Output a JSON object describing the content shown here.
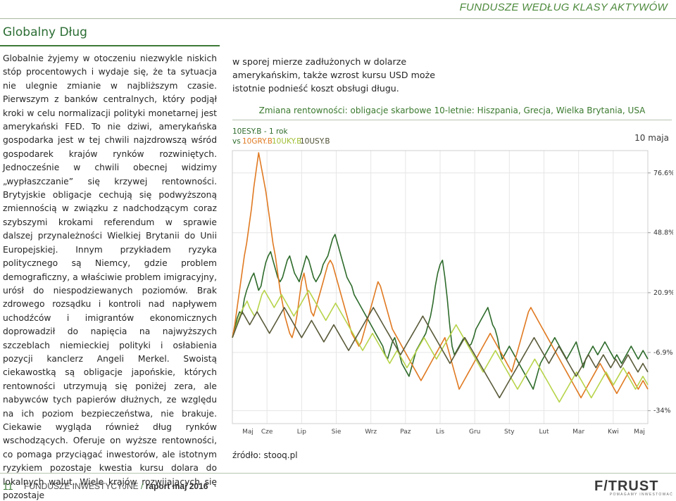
{
  "header": {
    "title": "FUNDUSZE WEDŁUG KLASY AKTYWÓW"
  },
  "section": {
    "title": "Globalny Dług"
  },
  "article": {
    "left_column": "Globalnie żyjemy w otoczeniu niezwykle niskich stóp procentowych i wydaje się, że ta sytuacja nie ulegnie zmianie w najbliższym czasie. Pierwszym z banków centralnych, który podjął kroki w celu normalizacji polityki monetarnej jest amerykański FED. To nie dziwi, amerykańska gospodarka jest w tej chwili najzdrowszą wśród gospodarek krajów rynków rozwiniętych. Jednocześnie w chwili obecnej widzimy „wypłaszczanie” się krzywej rentowności. Brytyjskie obligacje cechują się podwyższoną zmiennością w związku z nadchodzącym coraz szybszymi krokami referendum w sprawie dalszej przynależności Wielkiej Brytanii do Unii Europejskiej. Innym przykładem ryzyka politycznego są Niemcy, gdzie problem demograficzny, a właściwie problem imigracyjny, urósł do niespodziewanych poziomów. Brak zdrowego rozsądku i kontroli nad napływem uchodźców i imigrantów ekonomicznych doprowadził do napięcia na najwyższych szczeblach niemieckiej polityki i osłabienia pozycji kanclerz Angeli Merkel. Swoistą ciekawostką są obligacje japońskie, których rentowności utrzymują się poniżej zera, ale nabywców tych papierów dłużnych, ze względu na ich poziom bezpieczeństwa, nie brakuje. Ciekawie wygląda również dług rynków wschodzących. Oferuje on wyższe rentowności, co pomaga przyciągać inwestorów, ale istotnym ryzykiem pozostaje kwestia kursu dolara do lokalnych walut. Wiele krajów rozwijających się pozostaje",
    "right_column": "w sporej mierze zadłużonych w dolarze amerykańskim, także wzrost kursu USD może istotnie podnieść koszt obsługi długu."
  },
  "chart_title": "Zmiana rentowności: obligacje skarbowe 10-letnie: Hiszpania, Grecja, Wielka Brytania, USA",
  "chart_data": {
    "type": "line",
    "legend": {
      "line1": "10ESY.B - 1 rok",
      "vs": "vs",
      "items": [
        "10GRY.B",
        "10UKY.B",
        "10USY.B"
      ]
    },
    "x_ticks": [
      "Maj",
      "Cze",
      "Lip",
      "Sie",
      "Wrz",
      "Paz",
      "Lis",
      "Gru",
      "Sty",
      "Lut",
      "Mar",
      "Kwi",
      "Maj"
    ],
    "y_ticks": [
      "76.6%",
      "48.8%",
      "20.9%",
      "-6.9%",
      "-34%"
    ],
    "y_tick_values": [
      76.6,
      48.8,
      20.9,
      -6.9,
      -34
    ],
    "ylim": [
      -40,
      87
    ],
    "date_label": "10 maja",
    "series": [
      {
        "name": "10ESY.B",
        "color": "#2e6b2b",
        "values": [
          0,
          4,
          9,
          12,
          11,
          18,
          22,
          25,
          28,
          30,
          26,
          22,
          24,
          30,
          35,
          38,
          40,
          36,
          32,
          28,
          26,
          28,
          32,
          36,
          38,
          34,
          30,
          28,
          26,
          30,
          34,
          38,
          36,
          32,
          28,
          26,
          28,
          30,
          34,
          36,
          38,
          42,
          46,
          48,
          44,
          40,
          36,
          32,
          28,
          26,
          24,
          20,
          18,
          16,
          14,
          12,
          10,
          8,
          6,
          4,
          2,
          0,
          -2,
          -4,
          -8,
          -10,
          -6,
          -2,
          0,
          -4,
          -8,
          -12,
          -14,
          -16,
          -18,
          -14,
          -10,
          -6,
          -4,
          -2,
          0,
          2,
          6,
          10,
          16,
          24,
          30,
          34,
          36,
          28,
          18,
          6,
          -4,
          -8,
          -6,
          -4,
          -2,
          0,
          -2,
          -4,
          -3,
          0,
          4,
          6,
          8,
          10,
          12,
          14,
          10,
          6,
          4,
          0,
          -6,
          -10,
          -8,
          -6,
          -4,
          -6,
          -8,
          -10,
          -12,
          -14,
          -16,
          -18,
          -20,
          -22,
          -24,
          -20,
          -16,
          -12,
          -10,
          -8,
          -6,
          -4,
          -2,
          0,
          -2,
          -4,
          -6,
          -8,
          -10,
          -8,
          -6,
          -4,
          -2,
          -6,
          -10,
          -14,
          -10,
          -8,
          -6,
          -4,
          -6,
          -8,
          -6,
          -4,
          -2,
          -4,
          -6,
          -8,
          -10,
          -8,
          -10,
          -12,
          -10,
          -8,
          -6,
          -4,
          -6,
          -8,
          -10,
          -8,
          -6,
          -8,
          -10
        ]
      },
      {
        "name": "10GRY.B",
        "color": "#e07a22",
        "values": [
          0,
          6,
          14,
          22,
          30,
          38,
          44,
          52,
          60,
          70,
          78,
          86,
          80,
          74,
          68,
          60,
          52,
          44,
          38,
          30,
          22,
          16,
          10,
          6,
          2,
          0,
          4,
          10,
          18,
          26,
          30,
          24,
          18,
          12,
          10,
          14,
          18,
          22,
          26,
          30,
          34,
          36,
          34,
          30,
          26,
          22,
          18,
          14,
          10,
          6,
          2,
          0,
          -2,
          -4,
          -2,
          2,
          6,
          10,
          14,
          18,
          22,
          26,
          24,
          20,
          16,
          12,
          8,
          4,
          2,
          0,
          -2,
          -4,
          -6,
          -8,
          -10,
          -12,
          -14,
          -16,
          -18,
          -20,
          -18,
          -16,
          -14,
          -12,
          -10,
          -8,
          -6,
          -4,
          -2,
          0,
          -4,
          -8,
          -12,
          -16,
          -20,
          -24,
          -22,
          -20,
          -18,
          -16,
          -14,
          -12,
          -10,
          -8,
          -6,
          -4,
          -2,
          0,
          2,
          0,
          -2,
          -4,
          -6,
          -8,
          -10,
          -12,
          -14,
          -16,
          -12,
          -8,
          -4,
          0,
          4,
          8,
          12,
          14,
          12,
          10,
          8,
          6,
          4,
          2,
          0,
          -2,
          -4,
          -6,
          -8,
          -10,
          -12,
          -14,
          -16,
          -18,
          -20,
          -22,
          -24,
          -26,
          -28,
          -26,
          -24,
          -22,
          -20,
          -18,
          -16,
          -14,
          -12,
          -14,
          -16,
          -18,
          -20,
          -22,
          -24,
          -26,
          -24,
          -22,
          -20,
          -18,
          -16,
          -18,
          -20,
          -22,
          -24,
          -22,
          -20,
          -22,
          -24
        ]
      },
      {
        "name": "10UKY.B",
        "color": "#b7d44a",
        "values": [
          0,
          3,
          7,
          10,
          13,
          15,
          17,
          14,
          12,
          10,
          12,
          16,
          20,
          22,
          20,
          18,
          16,
          14,
          16,
          18,
          20,
          18,
          16,
          14,
          12,
          10,
          12,
          14,
          16,
          18,
          20,
          22,
          20,
          18,
          16,
          14,
          12,
          10,
          8,
          10,
          12,
          14,
          16,
          14,
          12,
          10,
          8,
          6,
          4,
          2,
          0,
          -2,
          -4,
          -6,
          -4,
          -2,
          0,
          2,
          0,
          -2,
          -4,
          -6,
          -8,
          -10,
          -12,
          -10,
          -8,
          -6,
          -8,
          -10,
          -12,
          -14,
          -12,
          -10,
          -8,
          -6,
          -4,
          -2,
          0,
          -2,
          -4,
          -6,
          -8,
          -10,
          -8,
          -6,
          -4,
          -2,
          0,
          2,
          4,
          6,
          4,
          2,
          0,
          -2,
          -4,
          -6,
          -8,
          -10,
          -12,
          -14,
          -16,
          -14,
          -12,
          -10,
          -8,
          -6,
          -8,
          -10,
          -12,
          -14,
          -16,
          -18,
          -20,
          -22,
          -24,
          -22,
          -20,
          -18,
          -16,
          -14,
          -12,
          -10,
          -12,
          -14,
          -16,
          -18,
          -20,
          -22,
          -24,
          -26,
          -28,
          -30,
          -28,
          -26,
          -24,
          -22,
          -20,
          -18,
          -16,
          -18,
          -20,
          -22,
          -24,
          -26,
          -28,
          -26,
          -24,
          -22,
          -20,
          -18,
          -16,
          -18,
          -20,
          -22,
          -20,
          -18,
          -16,
          -14,
          -16,
          -18,
          -20,
          -22,
          -24,
          -22,
          -20,
          -18,
          -20,
          -22
        ]
      },
      {
        "name": "10USY.B",
        "color": "#5a5a3a",
        "values": [
          0,
          3,
          6,
          9,
          12,
          10,
          8,
          6,
          8,
          10,
          12,
          10,
          8,
          6,
          4,
          2,
          4,
          6,
          8,
          10,
          12,
          14,
          12,
          10,
          8,
          6,
          4,
          2,
          0,
          2,
          4,
          6,
          8,
          6,
          4,
          2,
          0,
          -2,
          0,
          2,
          4,
          6,
          4,
          2,
          0,
          -2,
          -4,
          -6,
          -4,
          -2,
          0,
          2,
          4,
          6,
          8,
          10,
          12,
          14,
          12,
          10,
          8,
          6,
          4,
          2,
          0,
          -2,
          -4,
          -6,
          -8,
          -6,
          -4,
          -2,
          0,
          2,
          4,
          6,
          8,
          10,
          8,
          6,
          4,
          2,
          0,
          -2,
          -4,
          -6,
          -8,
          -10,
          -12,
          -10,
          -8,
          -6,
          -4,
          -2,
          0,
          -2,
          -4,
          -6,
          -8,
          -10,
          -12,
          -14,
          -16,
          -18,
          -20,
          -22,
          -24,
          -26,
          -28,
          -26,
          -24,
          -22,
          -20,
          -18,
          -16,
          -14,
          -12,
          -10,
          -8,
          -6,
          -4,
          -2,
          0,
          -2,
          -4,
          -6,
          -8,
          -10,
          -12,
          -10,
          -8,
          -6,
          -4,
          -6,
          -8,
          -10,
          -12,
          -14,
          -16,
          -18,
          -16,
          -14,
          -12,
          -10,
          -8,
          -10,
          -12,
          -14,
          -12,
          -10,
          -8,
          -10,
          -12,
          -14,
          -12,
          -10,
          -12,
          -14,
          -12,
          -10,
          -8,
          -10,
          -12,
          -14,
          -16,
          -14,
          -12,
          -14,
          -16
        ]
      }
    ]
  },
  "source": "źródło: stooq.pl",
  "footer": {
    "page_number": "11",
    "publication": "FUNDUSZE INWESTYCYJNE",
    "slash": "/",
    "issue": "raport maj 2016",
    "logo_text": "F/TRUST",
    "logo_tagline": "POMAGAMY INWESTOWAĆ"
  }
}
